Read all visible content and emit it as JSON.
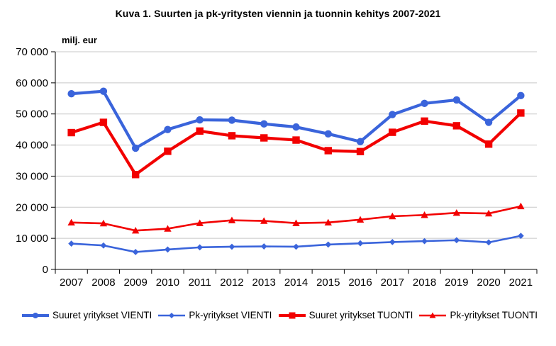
{
  "chart_data": {
    "type": "line",
    "title": "Kuva 1. Suurten ja pk-yritysten viennin ja tuonnin kehitys 2007-2021",
    "y_axis_label": "milj. eur",
    "xlabel": "",
    "ylabel": "milj. eur",
    "categories": [
      "2007",
      "2008",
      "2009",
      "2010",
      "2011",
      "2012",
      "2013",
      "2014",
      "2015",
      "2016",
      "2017",
      "2018",
      "2019",
      "2020",
      "2021"
    ],
    "ylim": [
      0,
      70000
    ],
    "ytick_step": 10000,
    "ytick_labels": [
      "0",
      "10 000",
      "20 000",
      "30 000",
      "40 000",
      "50 000",
      "60 000",
      "70 000"
    ],
    "grid": "horizontal",
    "grid_color": "#C8C8C8",
    "axis_color": "#000000",
    "legend_position": "bottom",
    "series": [
      {
        "name": "Suuret yritykset VIENTI",
        "color": "#3A64DB",
        "marker": "circle",
        "weight": "thick",
        "values": [
          56500,
          57300,
          39000,
          45000,
          48100,
          48000,
          46800,
          45800,
          43600,
          41100,
          49800,
          53400,
          54500,
          47300,
          55900
        ]
      },
      {
        "name": "Pk-yritykset VIENTI",
        "color": "#3A64DB",
        "marker": "diamond",
        "weight": "thin",
        "values": [
          8300,
          7700,
          5600,
          6400,
          7100,
          7300,
          7400,
          7300,
          8000,
          8400,
          8800,
          9100,
          9400,
          8700,
          10800
        ]
      },
      {
        "name": "Suuret yritykset TUONTI",
        "color": "#F20000",
        "marker": "square",
        "weight": "thick",
        "values": [
          44000,
          47300,
          30500,
          38000,
          44500,
          43000,
          42300,
          41600,
          38200,
          37900,
          44100,
          47700,
          46200,
          40300,
          50300
        ]
      },
      {
        "name": "Pk-yritykset TUONTI",
        "color": "#F20000",
        "marker": "triangle",
        "weight": "thin",
        "values": [
          15100,
          14800,
          12500,
          13100,
          14900,
          15800,
          15600,
          14900,
          15100,
          16000,
          17100,
          17500,
          18200,
          18000,
          20300
        ]
      }
    ]
  }
}
